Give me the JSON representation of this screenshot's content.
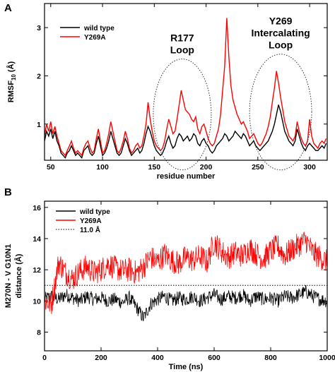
{
  "chart_data": [
    {
      "panel": "A",
      "type": "line",
      "xlabel": "residue number",
      "ylabel": "RMSF10 (Å)",
      "ylabel_main": "RMSF",
      "ylabel_sub": "10",
      "ylabel_unit": " (Å)",
      "xlim": [
        44,
        317
      ],
      "ylim": [
        0.25,
        3.5
      ],
      "xticks": [
        50,
        100,
        150,
        200,
        250,
        300
      ],
      "yticks": [
        1,
        2,
        3
      ],
      "legend_position": "top-left",
      "annotations": [
        {
          "lines": [
            "R177",
            "Loop"
          ],
          "ellipse_center": [
            177,
            1.2
          ],
          "ellipse_radii": [
            28,
            1.15
          ]
        },
        {
          "lines": [
            "Y269",
            "Intercalating",
            "Loop"
          ],
          "ellipse_center": [
            272,
            1.25
          ],
          "ellipse_radii": [
            30,
            1.2
          ]
        }
      ],
      "series": [
        {
          "name": "wild type",
          "color": "#000000",
          "x": [
            44,
            46,
            48,
            50,
            52,
            54,
            56,
            58,
            60,
            62,
            64,
            66,
            68,
            70,
            72,
            74,
            76,
            78,
            80,
            82,
            84,
            86,
            88,
            90,
            92,
            94,
            96,
            98,
            100,
            102,
            104,
            106,
            108,
            110,
            112,
            114,
            116,
            118,
            120,
            122,
            124,
            126,
            128,
            130,
            132,
            134,
            136,
            138,
            140,
            142,
            144,
            146,
            148,
            150,
            152,
            154,
            156,
            158,
            160,
            162,
            164,
            166,
            168,
            170,
            172,
            174,
            176,
            178,
            180,
            182,
            184,
            186,
            188,
            190,
            192,
            194,
            196,
            198,
            200,
            202,
            204,
            206,
            208,
            210,
            212,
            214,
            216,
            218,
            220,
            222,
            224,
            226,
            228,
            230,
            232,
            234,
            236,
            238,
            240,
            242,
            244,
            246,
            248,
            250,
            252,
            254,
            256,
            258,
            260,
            262,
            264,
            266,
            268,
            270,
            272,
            274,
            276,
            278,
            280,
            282,
            284,
            286,
            288,
            290,
            292,
            294,
            296,
            298,
            300,
            302,
            304,
            306,
            308,
            310,
            312,
            314,
            316
          ],
          "y": [
            0.65,
            0.85,
            0.75,
            0.9,
            0.7,
            0.85,
            0.65,
            0.55,
            0.4,
            0.35,
            0.3,
            0.4,
            0.45,
            0.55,
            0.45,
            0.35,
            0.4,
            0.35,
            0.3,
            0.45,
            0.5,
            0.55,
            0.4,
            0.35,
            0.4,
            0.6,
            0.75,
            0.55,
            0.35,
            0.4,
            0.5,
            0.65,
            0.85,
            0.7,
            0.55,
            0.4,
            0.35,
            0.4,
            0.55,
            0.7,
            0.6,
            0.45,
            0.35,
            0.4,
            0.45,
            0.5,
            0.4,
            0.45,
            0.6,
            0.8,
            0.95,
            0.85,
            0.7,
            0.55,
            0.45,
            0.4,
            0.35,
            0.4,
            0.5,
            0.65,
            0.75,
            0.6,
            0.5,
            0.55,
            0.7,
            0.8,
            0.75,
            0.65,
            0.7,
            0.75,
            0.65,
            0.7,
            0.8,
            0.75,
            0.6,
            0.55,
            0.65,
            0.7,
            0.6,
            0.55,
            0.45,
            0.4,
            0.45,
            0.55,
            0.6,
            0.65,
            0.7,
            0.8,
            0.75,
            0.65,
            0.7,
            0.75,
            0.85,
            0.8,
            0.75,
            0.7,
            0.8,
            0.75,
            0.65,
            0.55,
            0.6,
            0.65,
            0.55,
            0.5,
            0.45,
            0.5,
            0.55,
            0.6,
            0.65,
            0.75,
            0.85,
            1.0,
            1.2,
            1.4,
            1.25,
            1.05,
            0.85,
            0.75,
            0.65,
            0.6,
            0.55,
            0.65,
            0.9,
            0.75,
            0.6,
            0.5,
            0.45,
            0.55,
            0.6,
            0.55,
            0.5,
            0.45,
            0.45,
            0.5,
            0.55,
            0.5,
            0.6
          ]
        },
        {
          "name": "Y269A",
          "color": "#ff0000",
          "x": [
            44,
            46,
            48,
            50,
            52,
            54,
            56,
            58,
            60,
            62,
            64,
            66,
            68,
            70,
            72,
            74,
            76,
            78,
            80,
            82,
            84,
            86,
            88,
            90,
            92,
            94,
            96,
            98,
            100,
            102,
            104,
            106,
            108,
            110,
            112,
            114,
            116,
            118,
            120,
            122,
            124,
            126,
            128,
            130,
            132,
            134,
            136,
            138,
            140,
            142,
            144,
            146,
            148,
            150,
            152,
            154,
            156,
            158,
            160,
            162,
            164,
            166,
            168,
            170,
            172,
            174,
            176,
            178,
            180,
            182,
            184,
            186,
            188,
            190,
            192,
            194,
            196,
            198,
            200,
            202,
            204,
            206,
            208,
            210,
            212,
            214,
            216,
            218,
            220,
            222,
            224,
            226,
            228,
            230,
            232,
            234,
            236,
            238,
            240,
            242,
            244,
            246,
            248,
            250,
            252,
            254,
            256,
            258,
            260,
            262,
            264,
            266,
            268,
            270,
            272,
            274,
            276,
            278,
            280,
            282,
            284,
            286,
            288,
            290,
            292,
            294,
            296,
            298,
            300,
            302,
            304,
            306,
            308,
            310,
            312,
            314,
            316
          ],
          "y": [
            0.75,
            1.0,
            0.85,
            1.05,
            0.8,
            0.95,
            0.75,
            0.6,
            0.45,
            0.4,
            0.35,
            0.45,
            0.55,
            0.65,
            0.5,
            0.4,
            0.45,
            0.4,
            0.35,
            0.5,
            0.6,
            0.65,
            0.5,
            0.4,
            0.45,
            0.7,
            0.9,
            0.65,
            0.4,
            0.45,
            0.6,
            0.8,
            1.05,
            0.85,
            0.65,
            0.45,
            0.4,
            0.5,
            0.65,
            0.85,
            0.7,
            0.5,
            0.4,
            0.45,
            0.55,
            0.6,
            0.5,
            0.55,
            0.75,
            1.0,
            1.45,
            1.1,
            0.85,
            0.65,
            0.55,
            0.5,
            0.45,
            0.5,
            0.65,
            0.9,
            1.1,
            0.95,
            0.8,
            0.85,
            1.1,
            1.4,
            1.7,
            1.5,
            1.3,
            1.25,
            1.2,
            1.1,
            1.05,
            1.15,
            0.9,
            0.8,
            0.95,
            1.0,
            0.85,
            0.7,
            0.6,
            0.55,
            0.6,
            0.75,
            0.9,
            1.2,
            1.7,
            2.2,
            3.2,
            2.4,
            1.8,
            1.5,
            1.35,
            1.2,
            1.1,
            1.0,
            1.05,
            0.95,
            0.85,
            0.7,
            0.75,
            0.8,
            0.7,
            0.6,
            0.55,
            0.6,
            0.7,
            0.8,
            0.95,
            1.15,
            1.45,
            1.75,
            2.1,
            1.85,
            1.55,
            1.3,
            1.05,
            0.9,
            0.75,
            0.7,
            0.65,
            0.75,
            1.05,
            0.85,
            0.7,
            0.6,
            0.55,
            0.65,
            1.1,
            0.75,
            0.6,
            0.55,
            0.5,
            0.6,
            0.65,
            0.6,
            0.7
          ]
        }
      ]
    },
    {
      "panel": "B",
      "type": "line",
      "xlabel": "Time (ns)",
      "ylabel": "M270N - V G10N1 distance (Å)",
      "ylabel_line1": "M270N - V G10N1",
      "ylabel_line2": "distance (Å)",
      "xlim": [
        0,
        1000
      ],
      "ylim": [
        6.8,
        16.4
      ],
      "xticks": [
        0,
        200,
        400,
        600,
        800,
        1000
      ],
      "yticks": [
        8,
        10,
        12,
        14,
        16
      ],
      "legend_position": "top-left",
      "series": [
        {
          "name": "wild type",
          "color": "#000000",
          "x": [
            0,
            25,
            50,
            75,
            100,
            125,
            150,
            175,
            200,
            225,
            250,
            275,
            300,
            325,
            350,
            375,
            400,
            425,
            450,
            475,
            500,
            525,
            550,
            575,
            600,
            625,
            650,
            675,
            700,
            725,
            750,
            775,
            800,
            825,
            850,
            875,
            900,
            925,
            950,
            975,
            1000
          ],
          "y": [
            10.1,
            10.3,
            10.1,
            10.4,
            10.2,
            10.0,
            10.3,
            10.1,
            10.2,
            10.0,
            10.1,
            9.9,
            10.2,
            9.6,
            8.9,
            9.8,
            10.1,
            10.3,
            10.0,
            10.2,
            10.1,
            10.3,
            10.0,
            10.2,
            10.4,
            10.1,
            10.3,
            10.2,
            10.4,
            10.0,
            10.3,
            10.1,
            10.2,
            10.0,
            10.3,
            10.2,
            10.4,
            10.6,
            10.3,
            10.1,
            10.0
          ]
        },
        {
          "name": "Y269A",
          "color": "#ff0000",
          "x": [
            0,
            25,
            50,
            75,
            100,
            125,
            150,
            175,
            200,
            225,
            250,
            275,
            300,
            325,
            350,
            375,
            400,
            425,
            450,
            475,
            500,
            525,
            550,
            575,
            600,
            625,
            650,
            675,
            700,
            725,
            750,
            775,
            800,
            825,
            850,
            875,
            900,
            925,
            950,
            975,
            1000
          ],
          "y": [
            10.0,
            9.8,
            12.5,
            11.8,
            11.4,
            11.9,
            12.2,
            11.8,
            12.0,
            12.4,
            12.1,
            11.9,
            12.0,
            11.8,
            12.2,
            12.8,
            12.5,
            13.0,
            12.6,
            12.4,
            12.8,
            12.6,
            12.9,
            12.5,
            13.8,
            13.2,
            12.8,
            13.1,
            12.9,
            13.4,
            13.0,
            12.7,
            13.2,
            13.5,
            12.9,
            13.3,
            13.6,
            13.9,
            13.1,
            12.8,
            12.5
          ]
        },
        {
          "name": "11.0 Å",
          "color": "#000000",
          "dash": "dotted",
          "x": [
            0,
            1000
          ],
          "y": [
            11.0,
            11.0
          ]
        }
      ]
    }
  ]
}
